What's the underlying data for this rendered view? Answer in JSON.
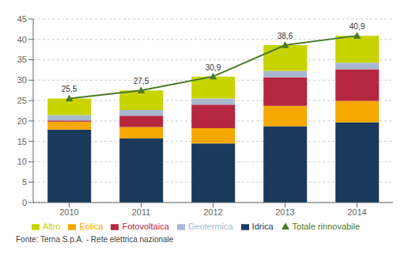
{
  "chart_data": {
    "type": "bar",
    "stacked": true,
    "categories": [
      "2010",
      "2011",
      "2012",
      "2013",
      "2014"
    ],
    "series": [
      {
        "name": "Idrica",
        "color": "#1a3a5c",
        "values": [
          17.9,
          15.7,
          14.5,
          18.7,
          19.7
        ]
      },
      {
        "name": "Eolica",
        "color": "#f5a800",
        "values": [
          1.9,
          2.8,
          3.7,
          5.0,
          5.2
        ]
      },
      {
        "name": "Fotovoltaica",
        "color": "#b5273e",
        "values": [
          0.3,
          2.8,
          5.8,
          7.0,
          7.8
        ]
      },
      {
        "name": "Geotermica",
        "color": "#a8b8d0",
        "values": [
          1.3,
          1.4,
          1.5,
          1.6,
          1.6
        ]
      },
      {
        "name": "Altro",
        "color": "#c8d400",
        "values": [
          4.1,
          4.8,
          5.4,
          6.3,
          6.6
        ]
      },
      {
        "name": "Totale rinnovabile",
        "type": "line",
        "color": "#4a7a28",
        "marker": "triangle",
        "data_labels": true,
        "values": [
          25.5,
          27.5,
          30.9,
          38.6,
          40.9
        ],
        "value_labels": [
          "25,5",
          "27,5",
          "30,9",
          "38,6",
          "40,9"
        ]
      }
    ],
    "ylim": [
      0,
      45
    ],
    "yticks": [
      0,
      5,
      10,
      15,
      20,
      25,
      30,
      35,
      40,
      45
    ],
    "grid": true,
    "legend": "bottom",
    "annotations": [
      "Fonte: Terna S.p.A. - Rete elettrica nazionale"
    ]
  }
}
